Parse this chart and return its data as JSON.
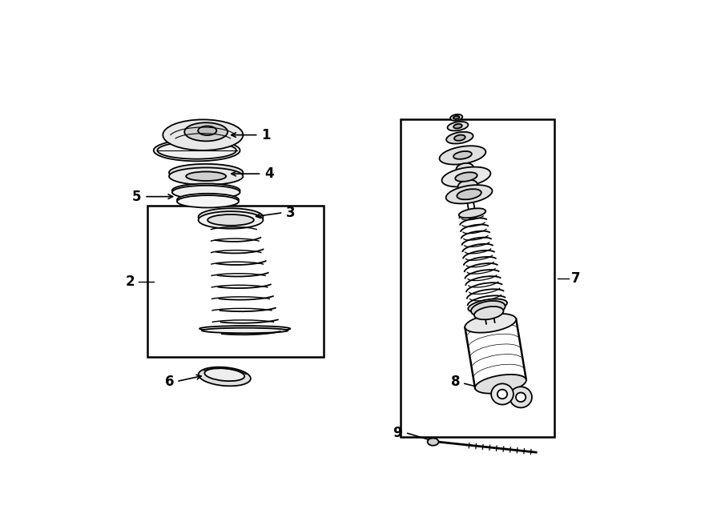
{
  "bg_color": "#ffffff",
  "line_color": "#000000",
  "fig_width": 9.0,
  "fig_height": 6.61,
  "dpi": 100,
  "label_fontsize": 11
}
